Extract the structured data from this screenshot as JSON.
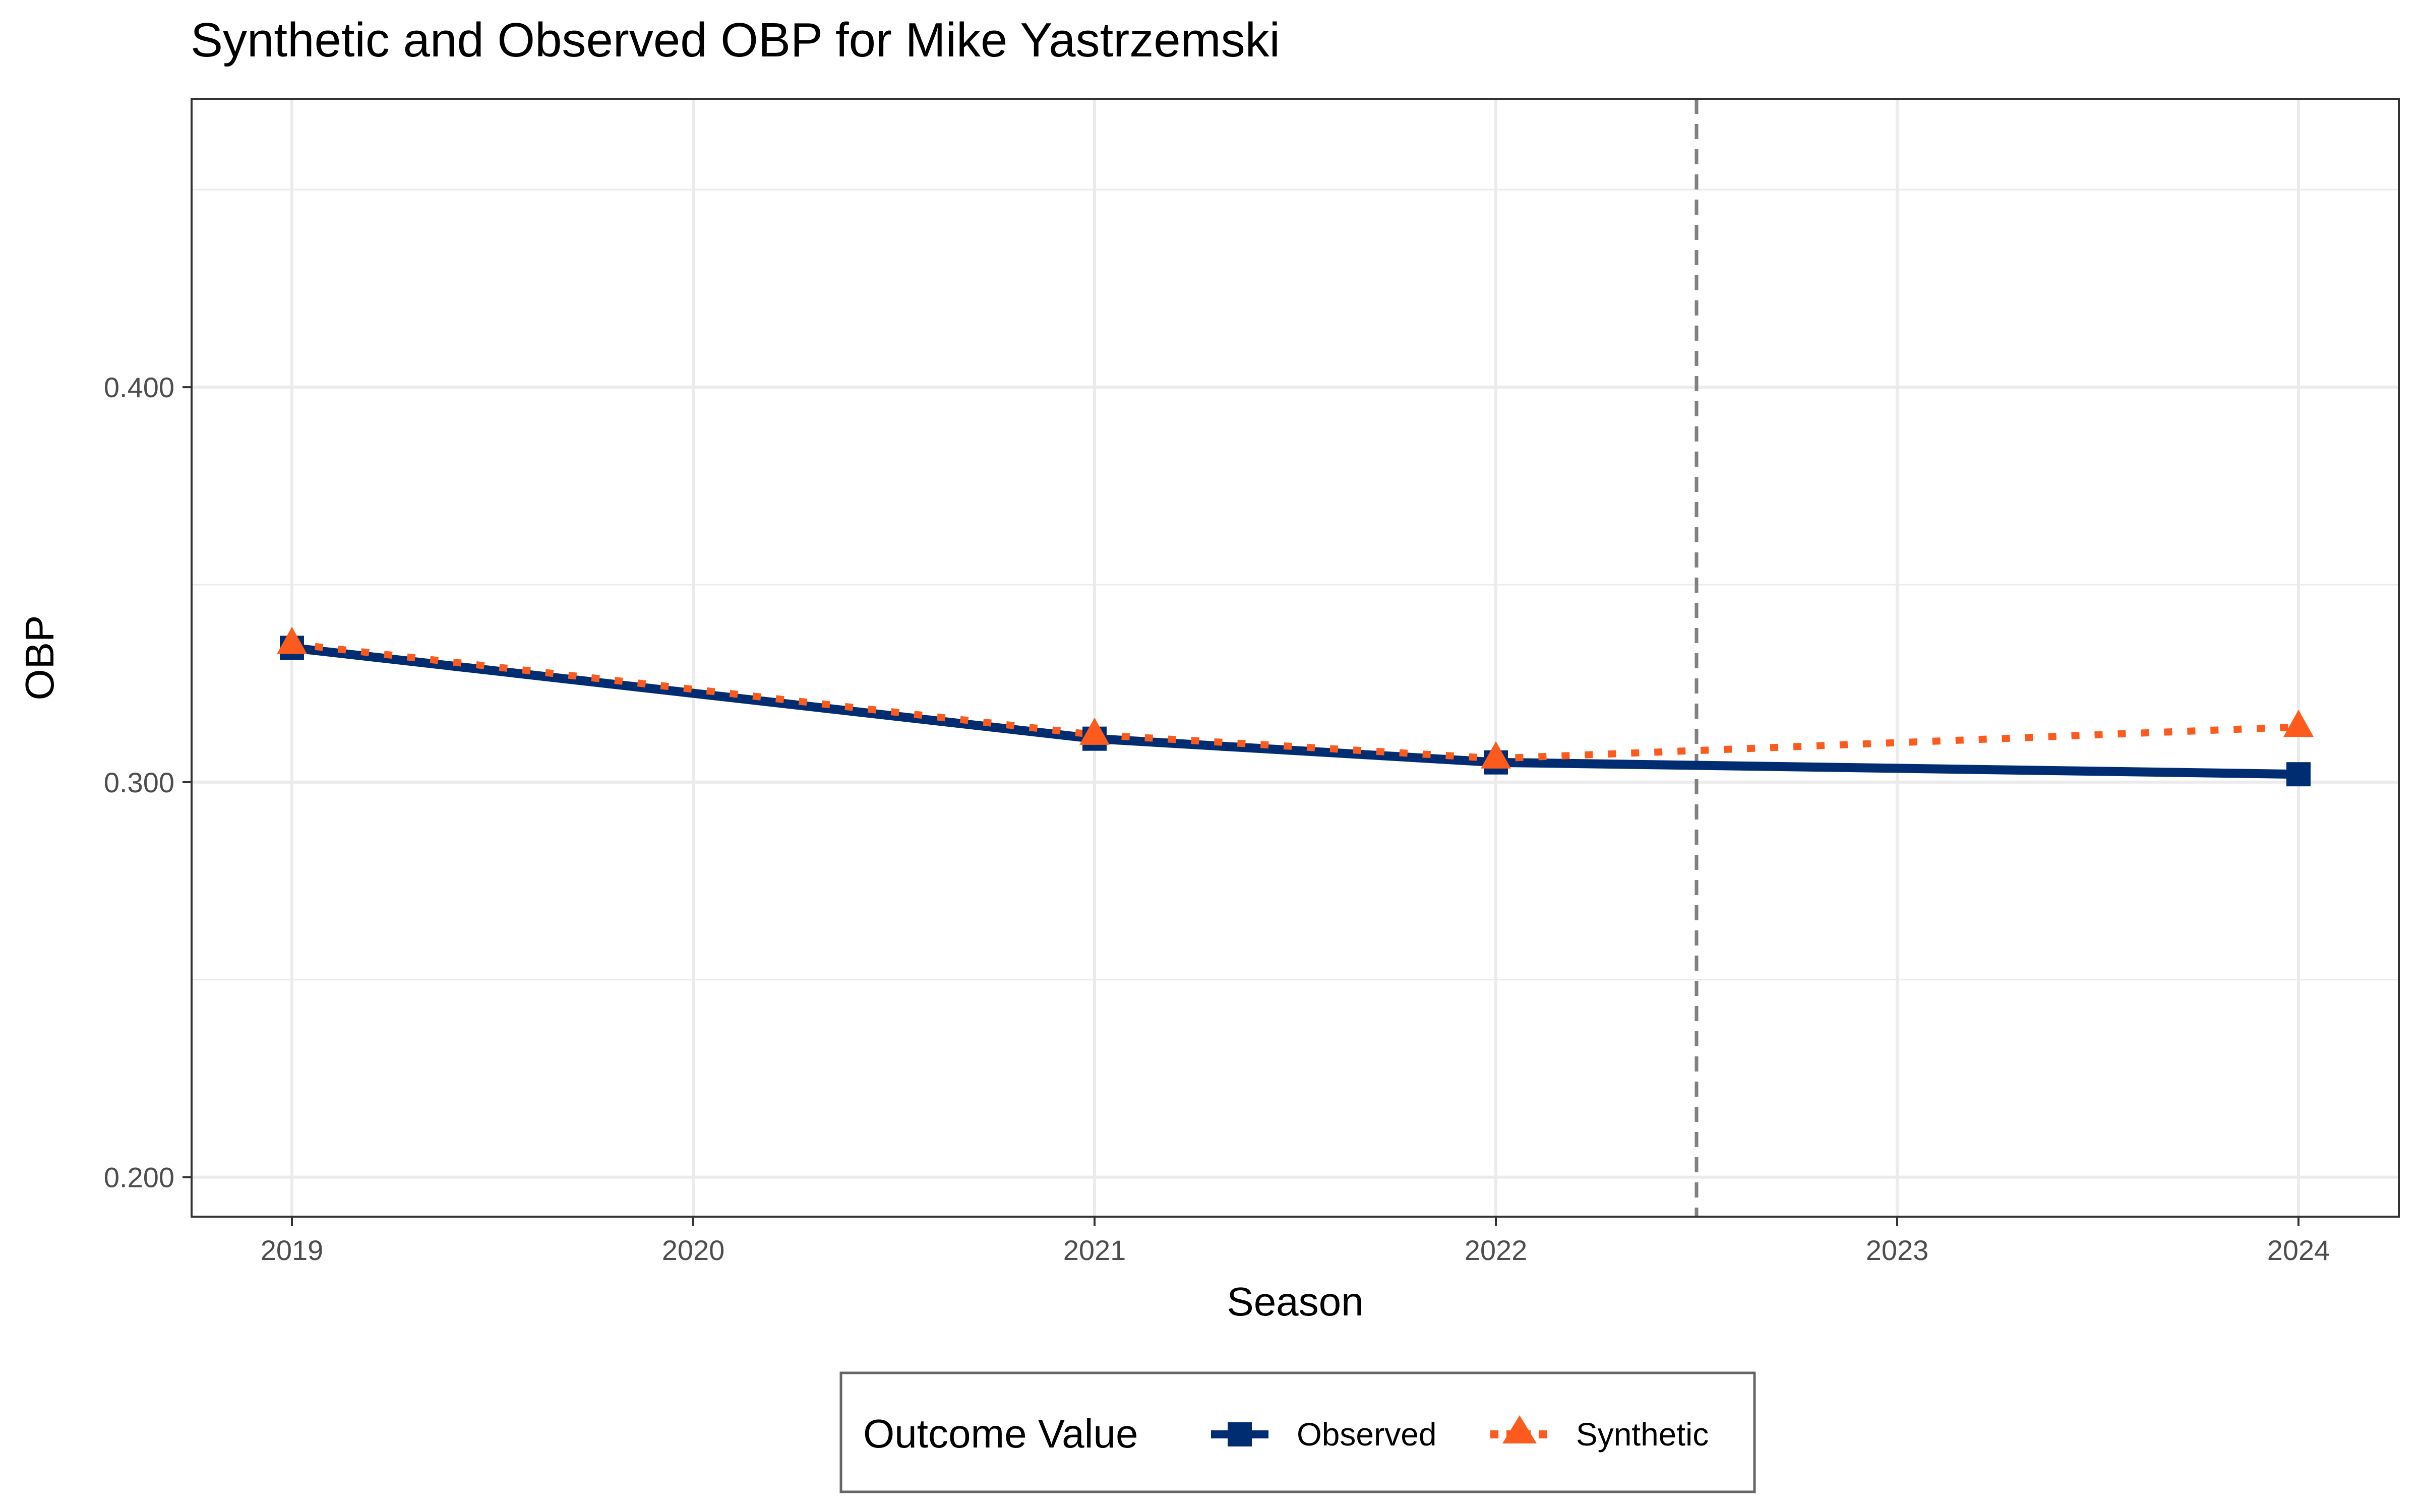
{
  "chart_data": {
    "type": "line",
    "title": "Synthetic and Observed OBP for Mike Yastrzemski",
    "xlabel": "Season",
    "ylabel": "OBP",
    "x": [
      2019,
      2020,
      2021,
      2022,
      2023,
      2024
    ],
    "x_ticks": [
      "2019",
      "2020",
      "2021",
      "2022",
      "2023",
      "2024"
    ],
    "y_ticks": [
      "0.200",
      "0.300",
      "0.400"
    ],
    "y_tick_values": [
      0.2,
      0.3,
      0.4
    ],
    "xlim": [
      2018.75,
      2024.25
    ],
    "ylim": [
      0.19,
      0.473
    ],
    "grid": true,
    "intervention_line": 2022.5,
    "legend": {
      "title": "Outcome Value",
      "position": "bottom"
    },
    "series": [
      {
        "name": "Observed",
        "color": "#002D72",
        "marker": "square",
        "line": "solid",
        "points": [
          [
            2019,
            0.334
          ],
          [
            2021,
            0.311
          ],
          [
            2022,
            0.305
          ],
          [
            2024,
            0.302
          ]
        ]
      },
      {
        "name": "Synthetic",
        "color": "#FD5A1E",
        "marker": "triangle",
        "line": "dotted",
        "points": [
          [
            2019,
            0.335
          ],
          [
            2021,
            0.312
          ],
          [
            2022,
            0.306
          ],
          [
            2024,
            0.314
          ]
        ]
      }
    ]
  }
}
